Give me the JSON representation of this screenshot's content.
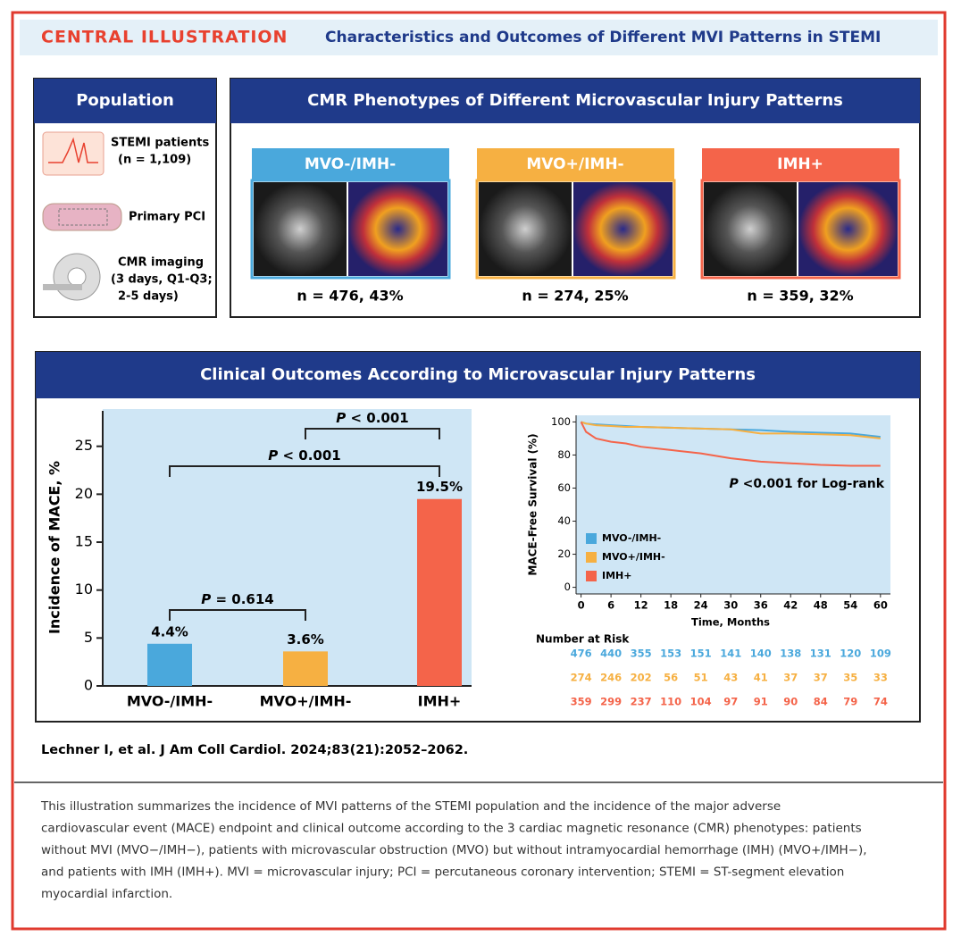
{
  "header": {
    "label": "CENTRAL ILLUSTRATION",
    "title": "Characteristics and Outcomes of Different MVI Patterns in STEMI"
  },
  "population": {
    "title": "Population",
    "items": [
      [
        "STEMI patients",
        "(n = 1,109)"
      ],
      [
        "Primary PCI"
      ],
      [
        "CMR imaging",
        "(3 days, Q1-Q3;",
        "2-5 days)"
      ]
    ]
  },
  "phenotypes": {
    "title": "CMR Phenotypes of Different Microvascular Injury Patterns",
    "groups": [
      {
        "name": "MVO-/IMH-",
        "color": "#4aa8dc",
        "n": "n = 476, 43%"
      },
      {
        "name": "MVO+/IMH-",
        "color": "#f6b042",
        "n": "n = 274, 25%"
      },
      {
        "name": "IMH+",
        "color": "#f4644a",
        "n": "n = 359, 32%"
      }
    ]
  },
  "outcomes": {
    "title": "Clinical Outcomes According to Microvascular Injury Patterns"
  },
  "chart_data": [
    {
      "type": "bar",
      "ylabel": "Incidence of MACE, %",
      "categories": [
        "MVO-/IMH-",
        "MVO+/IMH-",
        "IMH+"
      ],
      "values": [
        4.4,
        3.6,
        19.5
      ],
      "value_labels": [
        "4.4%",
        "3.6%",
        "19.5%"
      ],
      "colors": [
        "#4aa8dc",
        "#f6b042",
        "#f4644a"
      ],
      "ylim": [
        0,
        28.7
      ],
      "yticks": [
        0,
        5,
        10,
        15,
        20,
        25
      ],
      "annotations": [
        "P < 0.001",
        "P < 0.001",
        "P = 0.614"
      ]
    },
    {
      "type": "line",
      "xlabel": "Time, Months",
      "ylabel": "MACE-Free Survival (%)",
      "x": [
        0,
        1,
        3,
        6,
        9,
        12,
        18,
        24,
        30,
        36,
        42,
        48,
        54,
        60
      ],
      "series": [
        {
          "name": "MVO-/IMH-",
          "color": "#4aa8dc",
          "values": [
            100,
            99,
            98.5,
            98,
            97.5,
            97,
            96.5,
            96,
            95.5,
            95,
            94,
            93.5,
            93,
            91
          ]
        },
        {
          "name": "MVO+/IMH-",
          "color": "#f6b042",
          "values": [
            100,
            99,
            98,
            97.5,
            97,
            97,
            96.5,
            96,
            95.5,
            93,
            93,
            92.5,
            92,
            90
          ]
        },
        {
          "name": "IMH+",
          "color": "#f4644a",
          "values": [
            100,
            94,
            90,
            88,
            87,
            85,
            83,
            81,
            78,
            76,
            75,
            74,
            73.5,
            73.5
          ]
        }
      ],
      "xlim": [
        -1,
        62
      ],
      "xticks": [
        0,
        6,
        12,
        18,
        24,
        30,
        36,
        42,
        48,
        54,
        60
      ],
      "ylim": [
        -4,
        104
      ],
      "yticks": [
        0,
        20,
        40,
        60,
        80,
        100
      ],
      "legend": "bottom-left",
      "annotation": "P <0.001 for Log-rank"
    }
  ],
  "risk_table": {
    "title": "Number at Risk",
    "rows": [
      {
        "color": "#4aa8dc",
        "values": [
          476,
          440,
          355,
          153,
          151,
          141,
          140,
          138,
          131,
          120,
          109
        ]
      },
      {
        "color": "#f6b042",
        "values": [
          274,
          246,
          202,
          56,
          51,
          43,
          41,
          37,
          37,
          35,
          33
        ]
      },
      {
        "color": "#f4644a",
        "values": [
          359,
          299,
          237,
          110,
          104,
          97,
          91,
          90,
          84,
          79,
          74
        ]
      }
    ]
  },
  "citation": "Lechner I, et al. J Am Coll Cardiol. 2024;83(21):2052–2062.",
  "caption": [
    "This illustration summarizes the incidence of MVI patterns of the STEMI population and the incidence of the major adverse",
    "cardiovascular event (MACE) endpoint and clinical outcome according to the 3 cardiac magnetic resonance (CMR) phenotypes: patients",
    "without MVI (MVO−/IMH−), patients with microvascular obstruction (MVO) but without intramyocardial hemorrhage (IMH) (MVO+/IMH−),",
    "and patients with IMH (IMH+). MVI = microvascular injury; PCI = percutaneous coronary intervention; STEMI = ST-segment elevation",
    "myocardial infarction."
  ]
}
